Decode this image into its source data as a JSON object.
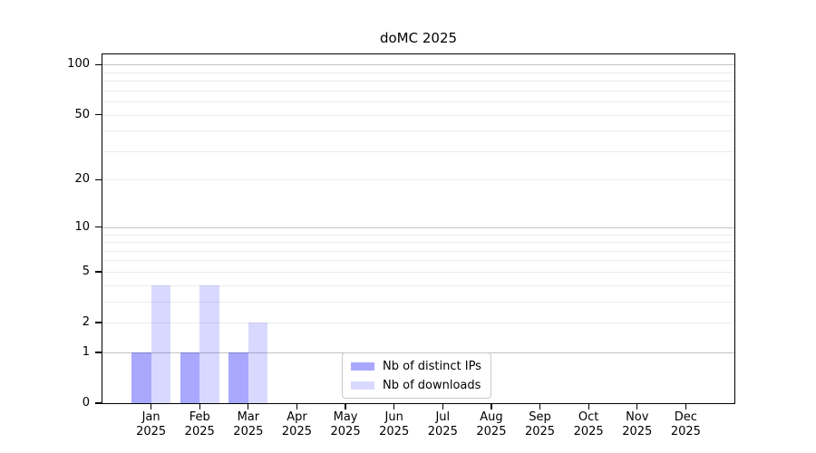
{
  "chart_data": {
    "type": "bar",
    "title": "doMC 2025",
    "categories": [
      "Jan",
      "Feb",
      "Mar",
      "Apr",
      "May",
      "Jun",
      "Jul",
      "Aug",
      "Sep",
      "Oct",
      "Nov",
      "Dec"
    ],
    "year_label": "2025",
    "series": [
      {
        "name": "Nb of distinct IPs",
        "color": "rgba(0,0,255,0.34)",
        "values": [
          1,
          1,
          1,
          0,
          0,
          0,
          0,
          0,
          0,
          0,
          0,
          0
        ]
      },
      {
        "name": "Nb of downloads",
        "color": "rgba(0,0,255,0.15)",
        "values": [
          4,
          4,
          2,
          0,
          0,
          0,
          0,
          0,
          0,
          0,
          0,
          0
        ]
      }
    ],
    "xlabel": "",
    "ylabel": "",
    "yscale": "log1p",
    "ylim": [
      0,
      115
    ],
    "yticks": [
      0,
      1,
      2,
      5,
      10,
      20,
      50,
      100
    ],
    "major_gridlines": [
      1,
      10,
      100
    ],
    "minor_gridlines": [
      2,
      3,
      4,
      5,
      6,
      7,
      8,
      9,
      20,
      30,
      40,
      50,
      60,
      70,
      80,
      90
    ],
    "grid": "horizontal",
    "legend_position": "lower center",
    "colors": {
      "major_grid": "#c2c2c2",
      "minor_grid": "#ececec",
      "frame": "#000000",
      "legend_border": "#c9c9c9",
      "background": "#ffffff"
    }
  }
}
